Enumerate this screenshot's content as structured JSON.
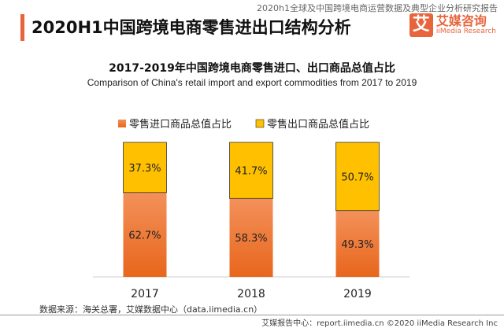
{
  "header": {
    "report_name": "2020h1全球及中国跨境电商运营数据及典型企业分析研究报告",
    "title": "2020H1中国跨境电商零售进出口结构分析",
    "logo_text": "艾媒咨询",
    "logo_sub": "iiMedia Research",
    "logo_mark": "艾"
  },
  "chart_data": {
    "type": "bar",
    "stacked": true,
    "title": "2017-2019年中国跨境电商零售进口、出口商品总值占比",
    "subtitle": "Comparison of China's retail import and export commodities from 2017 to 2019",
    "categories": [
      "2017",
      "2018",
      "2019"
    ],
    "series": [
      {
        "name": "零售进口商品总值占比",
        "values": [
          62.7,
          58.3,
          49.3
        ],
        "color": "#ee7530"
      },
      {
        "name": "零售出口商品总值占比",
        "values": [
          37.3,
          41.7,
          50.7
        ],
        "color": "#ffc000"
      }
    ],
    "unit": "%",
    "ylim": [
      0,
      100
    ],
    "legend": "top",
    "grid": false
  },
  "footer": {
    "source": "数据来源：海关总署，艾媒数据中心（data.iimedia.cn）",
    "credit": "艾媒报告中心：report.iimedia.cn  ©2020  iiMedia Research Inc"
  }
}
